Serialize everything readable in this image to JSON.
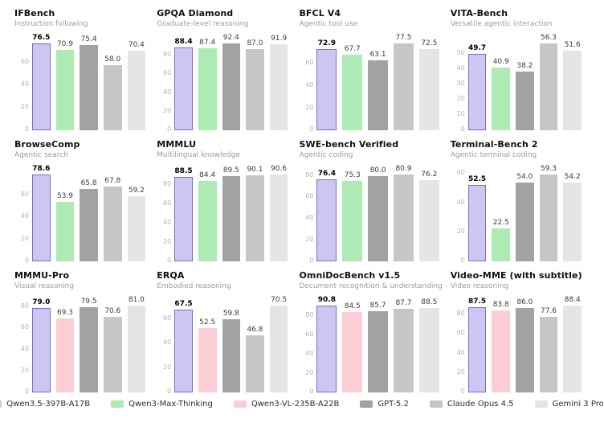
{
  "page": {
    "background": "#ffffff",
    "title_color": "#111111",
    "subtitle_color": "#9b9b9b",
    "tick_color": "#b4b4b4",
    "value_color": "#3c3c3c",
    "lead_value_color": "#000000"
  },
  "models": [
    {
      "id": "qwen35",
      "label": "Qwen3.5-397B-A17B",
      "fill": "#cbc6f2",
      "border": "#7a6bd1"
    },
    {
      "id": "max",
      "label": "Qwen3-Max-Thinking",
      "fill": "#aeeab3",
      "border": null
    },
    {
      "id": "vl",
      "label": "Qwen3-VL-235B-A22B",
      "fill": "#fccdd5",
      "border": null
    },
    {
      "id": "gpt52",
      "label": "GPT-5.2",
      "fill": "#a2a2a2",
      "border": null
    },
    {
      "id": "opus",
      "label": "Claude Opus 4.5",
      "fill": "#c6c6c6",
      "border": null
    },
    {
      "id": "gemini",
      "label": "Gemini 3 Pro",
      "fill": "#e5e5e5",
      "border": null
    }
  ],
  "chart_data": [
    {
      "type": "bar",
      "title": "IFBench",
      "subtitle": "Instruction following",
      "models": [
        "qwen35",
        "max",
        "gpt52",
        "opus",
        "gemini"
      ],
      "values": [
        76.5,
        70.9,
        75.4,
        58.0,
        70.4
      ],
      "yticks": [
        0,
        20,
        40,
        60
      ],
      "ylim": [
        0,
        76.5
      ]
    },
    {
      "type": "bar",
      "title": "GPQA Diamond",
      "subtitle": "Graduate-level reasoning",
      "models": [
        "qwen35",
        "max",
        "gpt52",
        "opus",
        "gemini"
      ],
      "values": [
        88.4,
        87.4,
        92.4,
        87.0,
        91.9
      ],
      "yticks": [
        0,
        20,
        40,
        60,
        80
      ],
      "ylim": [
        0,
        92.4
      ]
    },
    {
      "type": "bar",
      "title": "BFCL V4",
      "subtitle": "Agentic tool use",
      "models": [
        "qwen35",
        "max",
        "gpt52",
        "opus",
        "gemini"
      ],
      "values": [
        72.9,
        67.7,
        63.1,
        77.5,
        72.5
      ],
      "yticks": [
        0,
        20,
        40,
        60
      ],
      "ylim": [
        0,
        77.5
      ]
    },
    {
      "type": "bar",
      "title": "VITA-Bench",
      "subtitle": "Versatile agentic interaction",
      "models": [
        "qwen35",
        "max",
        "gpt52",
        "opus",
        "gemini"
      ],
      "values": [
        49.7,
        40.9,
        38.2,
        56.3,
        51.6
      ],
      "yticks": [
        0,
        10,
        20,
        30,
        40,
        50
      ],
      "ylim": [
        0,
        56.3
      ]
    },
    {
      "type": "bar",
      "title": "BrowseComp",
      "subtitle": "Agentic search",
      "models": [
        "qwen35",
        "max",
        "gpt52",
        "opus",
        "gemini"
      ],
      "values": [
        78.6,
        53.9,
        65.8,
        67.8,
        59.2
      ],
      "yticks": [
        0,
        20,
        40,
        60
      ],
      "ylim": [
        0,
        78.6
      ]
    },
    {
      "type": "bar",
      "title": "MMMLU",
      "subtitle": "Multilingual knowledge",
      "models": [
        "qwen35",
        "max",
        "gpt52",
        "opus",
        "gemini"
      ],
      "values": [
        88.5,
        84.4,
        89.5,
        90.1,
        90.6
      ],
      "yticks": [
        0,
        20,
        40,
        60,
        80
      ],
      "ylim": [
        0,
        90.6
      ]
    },
    {
      "type": "bar",
      "title": "SWE-bench Verified",
      "subtitle": "Agentic coding",
      "models": [
        "qwen35",
        "max",
        "gpt52",
        "opus",
        "gemini"
      ],
      "values": [
        76.4,
        75.3,
        80.0,
        80.9,
        76.2
      ],
      "yticks": [
        0,
        20,
        40,
        60,
        80
      ],
      "ylim": [
        0,
        80.9
      ]
    },
    {
      "type": "bar",
      "title": "Terminal-Bench 2",
      "subtitle": "Agentic terminal coding",
      "models": [
        "qwen35",
        "max",
        "gpt52",
        "opus",
        "gemini"
      ],
      "values": [
        52.5,
        22.5,
        54.0,
        59.3,
        54.2
      ],
      "yticks": [
        0,
        20,
        40,
        60
      ],
      "ylim": [
        0,
        59.3
      ]
    },
    {
      "type": "bar",
      "title": "MMMU-Pro",
      "subtitle": "Visual reasoning",
      "models": [
        "qwen35",
        "vl",
        "gpt52",
        "opus",
        "gemini"
      ],
      "values": [
        79.0,
        69.3,
        79.5,
        70.6,
        81.0
      ],
      "yticks": [
        0,
        20,
        40,
        60,
        80
      ],
      "ylim": [
        0,
        81.0
      ]
    },
    {
      "type": "bar",
      "title": "ERQA",
      "subtitle": "Embodied reasoning",
      "models": [
        "qwen35",
        "vl",
        "gpt52",
        "opus",
        "gemini"
      ],
      "values": [
        67.5,
        52.5,
        59.8,
        46.8,
        70.5
      ],
      "yticks": [
        0,
        20,
        40,
        60
      ],
      "ylim": [
        0,
        70.5
      ]
    },
    {
      "type": "bar",
      "title": "OmniDocBench v1.5",
      "subtitle": "Document recognition & understanding",
      "models": [
        "qwen35",
        "vl",
        "gpt52",
        "opus",
        "gemini"
      ],
      "values": [
        90.8,
        84.5,
        85.7,
        87.7,
        88.5
      ],
      "yticks": [
        0,
        20,
        40,
        60,
        80
      ],
      "ylim": [
        0,
        90.8
      ]
    },
    {
      "type": "bar",
      "title": "Video-MME (with subtitle)",
      "subtitle": "Video reasoning",
      "models": [
        "qwen35",
        "vl",
        "gpt52",
        "opus",
        "gemini"
      ],
      "values": [
        87.5,
        83.8,
        86.0,
        77.6,
        88.4
      ],
      "yticks": [
        0,
        20,
        40,
        60,
        80
      ],
      "ylim": [
        0,
        88.4
      ]
    }
  ]
}
